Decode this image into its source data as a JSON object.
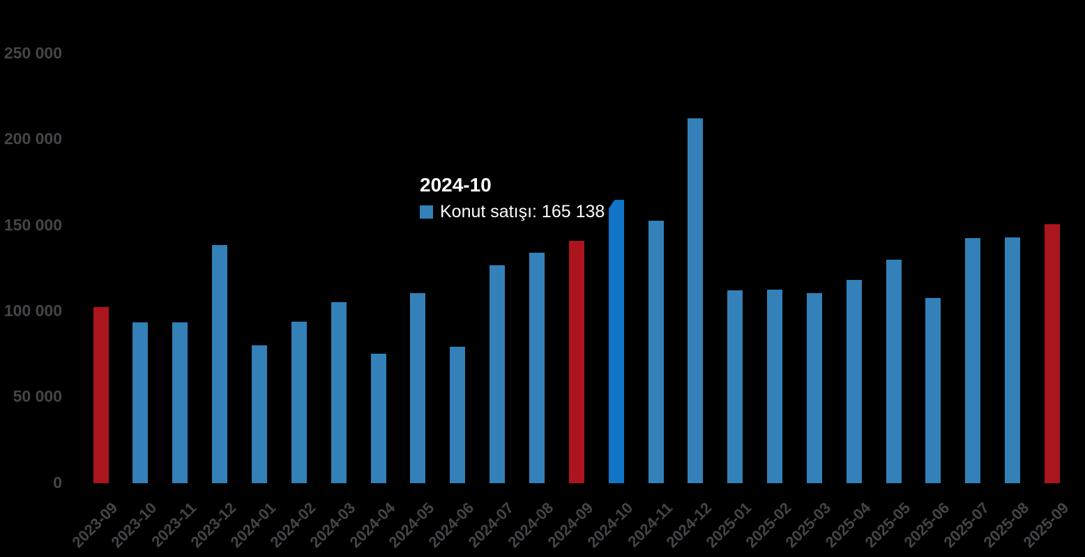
{
  "background_color": "#000000",
  "chart_data": {
    "type": "bar",
    "title": "",
    "xlabel": "",
    "ylabel": "",
    "categories": [
      "2023-09",
      "2023-10",
      "2023-11",
      "2023-12",
      "2024-01",
      "2024-02",
      "2024-03",
      "2024-04",
      "2024-05",
      "2024-06",
      "2024-07",
      "2024-08",
      "2024-09",
      "2024-10",
      "2024-11",
      "2024-12",
      "2025-01",
      "2025-02",
      "2025-03",
      "2025-04",
      "2025-05",
      "2025-06",
      "2025-07",
      "2025-08",
      "2025-09"
    ],
    "series": [
      {
        "name": "Konut satışı",
        "values": [
          102656,
          93761,
          93514,
          138577,
          80308,
          93902,
          105394,
          75569,
          110588,
          79500,
          127088,
          134155,
          140919,
          165138,
          153014,
          212637,
          112173,
          112818,
          110795,
          118359,
          130025,
          107723,
          142858,
          143319,
          150881
        ]
      }
    ],
    "ylim": [
      0,
      250000
    ],
    "yticks": [
      0,
      50000,
      100000,
      150000,
      200000,
      250000
    ],
    "ytick_labels": [
      "0",
      "50 000",
      "100 000",
      "150 000",
      "200 000",
      "250 000"
    ],
    "x_label_rotation": -45,
    "grid": false,
    "legend_position": "none",
    "bar_color": "#3381b8",
    "highlight_color": "#ab151e",
    "highlight_categories": [
      "2023-09",
      "2024-09",
      "2025-09"
    ],
    "hover_category": "2024-10",
    "hover_color": "#1175ca",
    "axis_label_color": "#454549"
  },
  "tooltip": {
    "title": "2024-10",
    "series_name": "Konut satışı",
    "value": 165138,
    "text": "Konut satışı: 165 138",
    "marker_color": "#3381b8",
    "text_color": "#ffffff"
  }
}
